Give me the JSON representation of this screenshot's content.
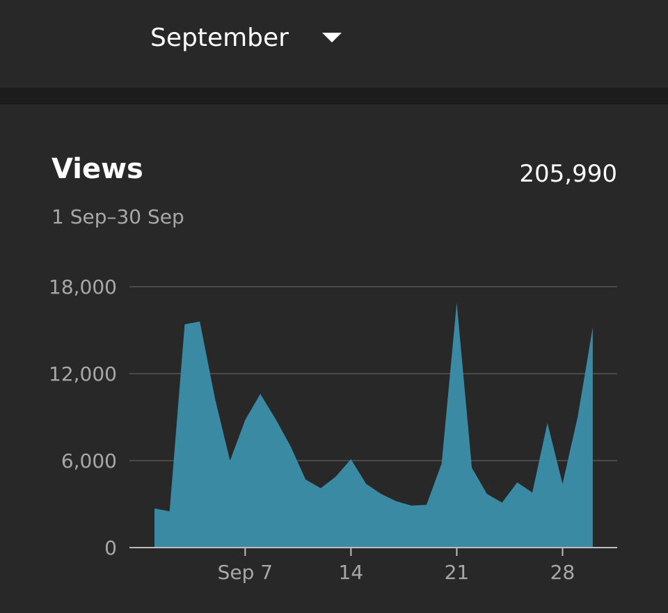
{
  "header": {
    "month": "September"
  },
  "card": {
    "title": "Views",
    "total": "205,990",
    "date_range": "1 Sep–30 Sep"
  },
  "colors": {
    "background": "#282828",
    "divider": "#1c1c1c",
    "area_fill": "#3a8aa3",
    "gridline": "#4a4a4a",
    "axis": "#bdbdbd"
  },
  "chart_data": {
    "type": "area",
    "title": "Views",
    "x": [
      1,
      2,
      3,
      4,
      5,
      6,
      7,
      8,
      9,
      10,
      11,
      12,
      13,
      14,
      15,
      16,
      17,
      18,
      19,
      20,
      21,
      22,
      23,
      24,
      25,
      26,
      27,
      28,
      29,
      30
    ],
    "values": [
      2700,
      2500,
      15400,
      15600,
      10300,
      6000,
      8800,
      10600,
      8900,
      7000,
      4700,
      4100,
      4900,
      6100,
      4400,
      3700,
      3200,
      2900,
      2950,
      5800,
      16900,
      5500,
      3700,
      3100,
      4500,
      3800,
      8600,
      4400,
      9000,
      15200
    ],
    "ylim": [
      0,
      18000
    ],
    "y_ticks": [
      0,
      6000,
      12000,
      18000
    ],
    "y_tick_labels": [
      "0",
      "6,000",
      "12,000",
      "18,000"
    ],
    "x_ticks": [
      7,
      14,
      21,
      28
    ],
    "x_tick_labels": [
      "Sep 7",
      "14",
      "21",
      "28"
    ],
    "grid": true
  }
}
